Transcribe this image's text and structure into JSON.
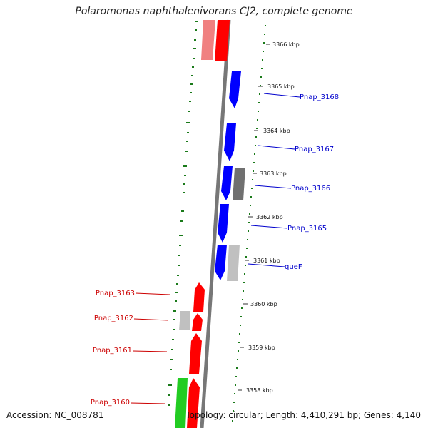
{
  "title": "Polaromonas naphthalenivorans CJ2, complete genome",
  "footer": {
    "accession": "Accession: NC_008781",
    "stats": "Topology: circular; Length: 4,410,291 bp; Genes: 4,140"
  },
  "colors": {
    "forward_strand": "#ff0000",
    "reverse_strand": "#0000ff",
    "rna": "#22cc22",
    "pseudo_dark": "#707070",
    "pseudo_light": "#c0c0c0",
    "pink": "#f08080",
    "gc_ticks": "#1a7a1a",
    "backbone": "#7a7a7a",
    "forward_label": "#cc0000",
    "reverse_label": "#0000cc"
  },
  "scale_labels": [
    "3366 kbp",
    "3365 kbp",
    "3364 kbp",
    "3363 kbp",
    "3362 kbp",
    "3361 kbp",
    "3360 kbp",
    "3359 kbp",
    "3358 kbp"
  ],
  "gene_labels": {
    "reverse": [
      "Pnap_3168",
      "Pnap_3167",
      "Pnap_3166",
      "Pnap_3165",
      "queF"
    ],
    "forward": [
      "Pnap_3163",
      "Pnap_3162",
      "Pnap_3161",
      "Pnap_3160"
    ]
  }
}
